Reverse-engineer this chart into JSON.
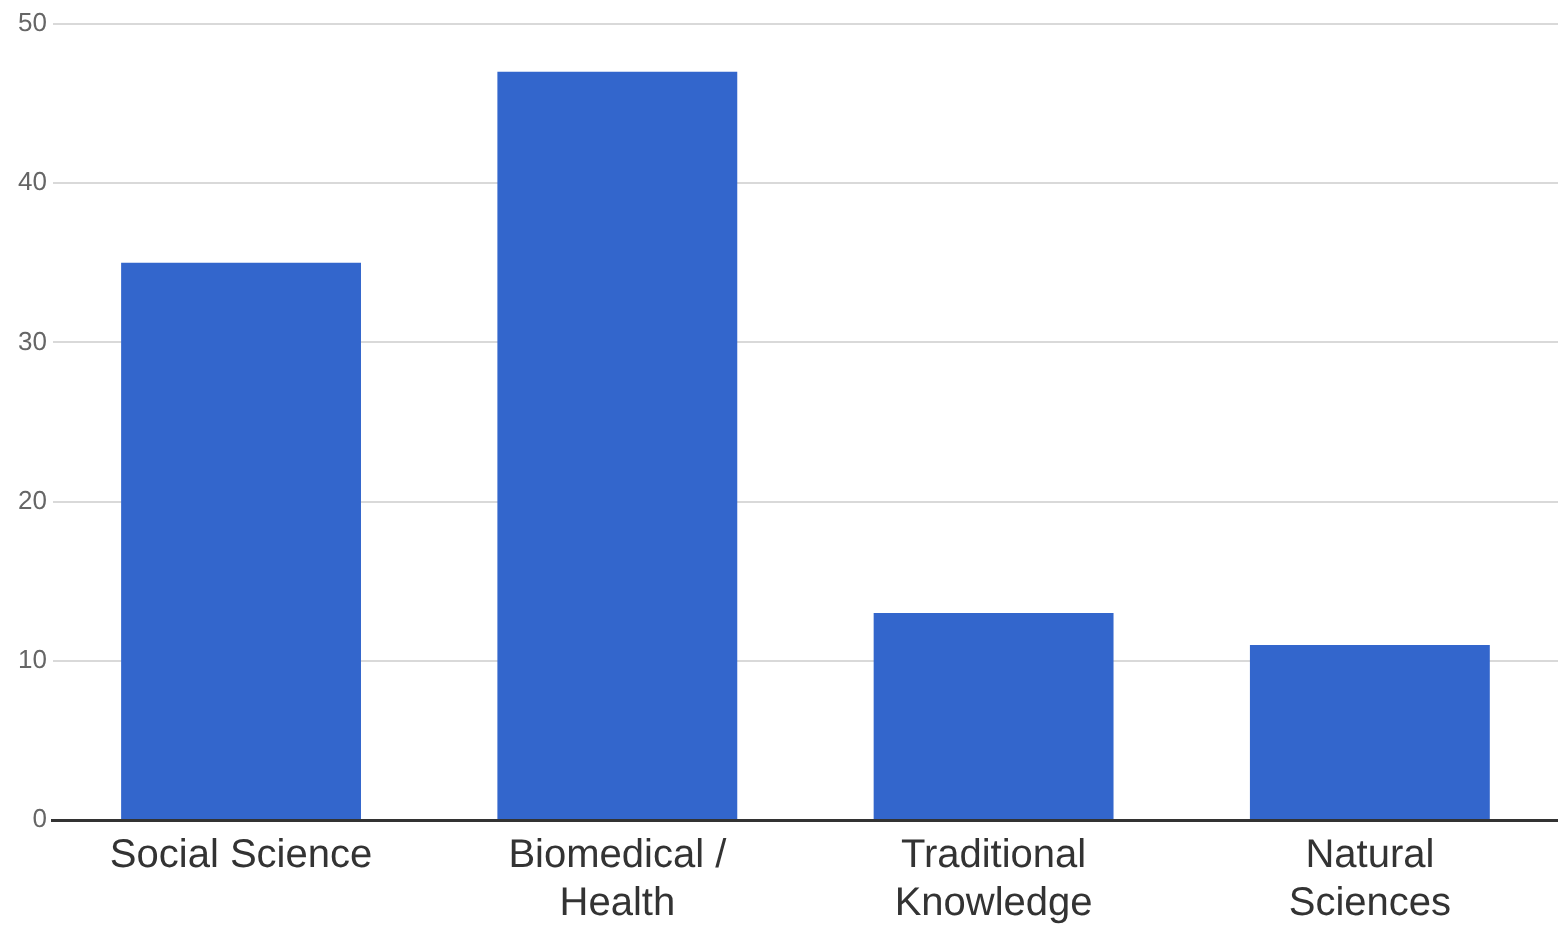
{
  "chart_data": {
    "type": "bar",
    "categories": [
      "Social Science",
      "Biomedical / Health",
      "Traditional Knowledge",
      "Natural Sciences"
    ],
    "values": [
      35,
      47,
      13,
      11
    ],
    "color": "#3366cc",
    "ylim": [
      0,
      50
    ],
    "yticks": [
      0,
      10,
      20,
      30,
      40,
      50
    ],
    "grid": "y",
    "legend": false
  }
}
